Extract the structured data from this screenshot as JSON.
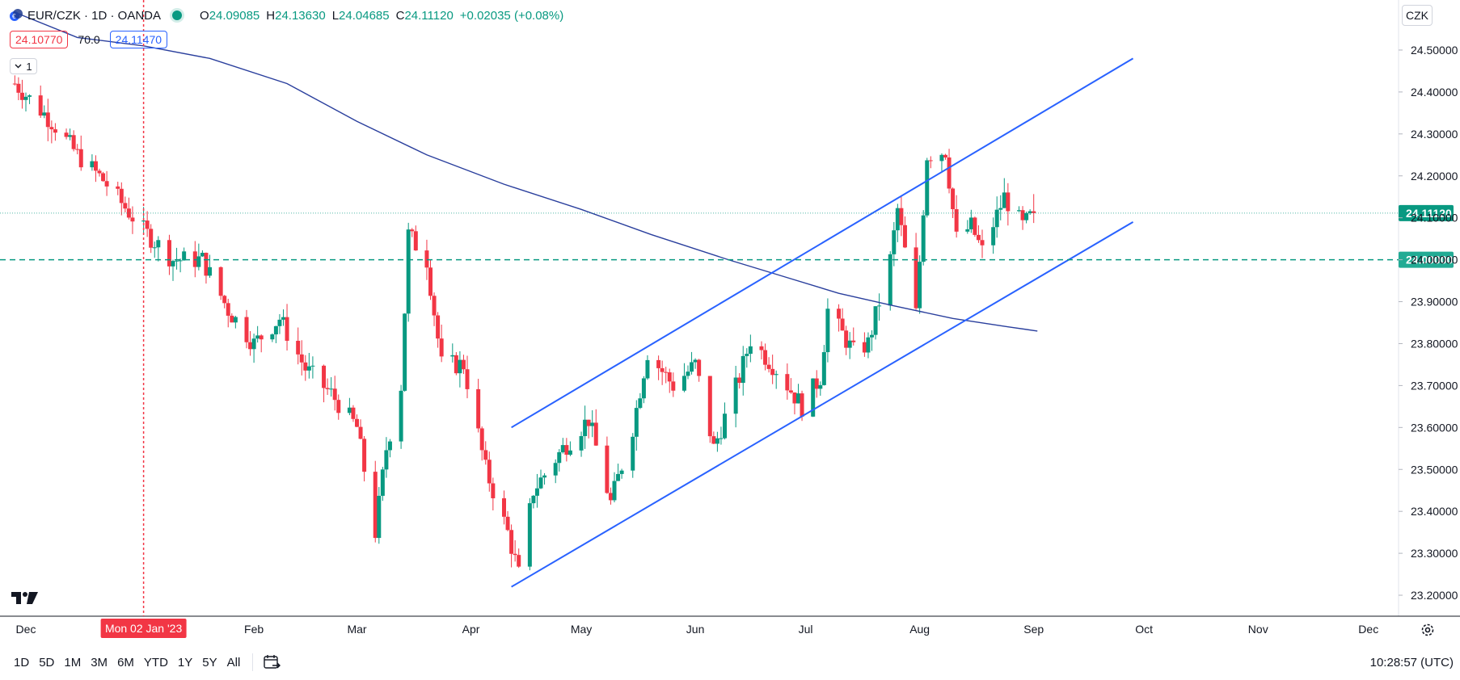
{
  "header": {
    "title": "EUR/CZK · 1D · OANDA",
    "open_label": "O",
    "open": "24.09085",
    "high_label": "H",
    "high": "24.13630",
    "low_label": "L",
    "low": "24.04685",
    "close_label": "C",
    "close": "24.11120",
    "change": "+0.02035 (+0.08%)"
  },
  "indicator": {
    "bid": "24.10770",
    "spread": "70.0",
    "ask": "24.11470",
    "collapse_count": "1"
  },
  "currency_button": "CZK",
  "bottom_bar": {
    "timeframes": [
      "1D",
      "5D",
      "1M",
      "3M",
      "6M",
      "YTD",
      "1Y",
      "5Y",
      "All"
    ],
    "clock": "10:28:57 (UTC)"
  },
  "colors": {
    "up": "#089981",
    "down": "#f23645",
    "ma": "#2a3f9d",
    "channel": "#2962ff",
    "level": "#089981",
    "crosshair": "#f23645"
  },
  "chart_data": {
    "type": "candlestick",
    "symbol": "EUR/CZK",
    "interval": "1D",
    "source": "OANDA",
    "ylim": [
      23.15,
      24.55
    ],
    "y_ticks": [
      "24.50000",
      "24.40000",
      "24.30000",
      "24.20000",
      "24.10000",
      "24.00000",
      "23.90000",
      "23.80000",
      "23.70000",
      "23.60000",
      "23.50000",
      "23.40000",
      "23.30000",
      "23.20000"
    ],
    "x_ticks": [
      "Dec",
      "Feb",
      "Mar",
      "Apr",
      "May",
      "Jun",
      "Jul",
      "Aug",
      "Sep",
      "Oct",
      "Nov",
      "Dec"
    ],
    "crosshair_label": "Mon 02 Jan '23",
    "price_label": "24.11120",
    "level_label": "24.00000",
    "last_price": 24.1112,
    "horizontal_level": 24.0,
    "channel_upper": [
      [
        "2023-04-12",
        23.6
      ],
      [
        "2023-09-28",
        24.48
      ]
    ],
    "channel_lower": [
      [
        "2023-04-12",
        23.22
      ],
      [
        "2023-09-28",
        24.09
      ]
    ],
    "moving_average": [
      [
        "2022-11-28",
        24.59
      ],
      [
        "2022-12-15",
        24.53
      ],
      [
        "2023-01-02",
        24.51
      ],
      [
        "2023-01-20",
        24.48
      ],
      [
        "2023-02-10",
        24.42
      ],
      [
        "2023-03-01",
        24.33
      ],
      [
        "2023-03-20",
        24.25
      ],
      [
        "2023-04-10",
        24.18
      ],
      [
        "2023-05-01",
        24.12
      ],
      [
        "2023-05-20",
        24.06
      ],
      [
        "2023-06-10",
        24.0
      ],
      [
        "2023-06-25",
        23.96
      ],
      [
        "2023-07-10",
        23.92
      ],
      [
        "2023-07-25",
        23.89
      ],
      [
        "2023-08-10",
        23.86
      ],
      [
        "2023-08-25",
        23.84
      ],
      [
        "2023-09-02",
        23.83
      ]
    ],
    "series": [
      {
        "name": "EUR/CZK",
        "anchors": [
          [
            "2022-11-28",
            24.42
          ],
          [
            "2022-12-08",
            24.33
          ],
          [
            "2022-12-15",
            24.25
          ],
          [
            "2022-12-22",
            24.19
          ],
          [
            "2023-01-02",
            24.07
          ],
          [
            "2023-01-10",
            24.0
          ],
          [
            "2023-01-18",
            24.0
          ],
          [
            "2023-01-25",
            23.88
          ],
          [
            "2023-02-01",
            23.8
          ],
          [
            "2023-02-08",
            23.86
          ],
          [
            "2023-02-15",
            23.74
          ],
          [
            "2023-02-22",
            23.68
          ],
          [
            "2023-03-01",
            23.6
          ],
          [
            "2023-03-06",
            23.35
          ],
          [
            "2023-03-09",
            23.55
          ],
          [
            "2023-03-13",
            23.7
          ],
          [
            "2023-03-15",
            24.06
          ],
          [
            "2023-03-20",
            24.0
          ],
          [
            "2023-03-24",
            23.75
          ],
          [
            "2023-03-30",
            23.75
          ],
          [
            "2023-04-05",
            23.5
          ],
          [
            "2023-04-11",
            23.35
          ],
          [
            "2023-04-14",
            23.25
          ],
          [
            "2023-04-18",
            23.45
          ],
          [
            "2023-04-26",
            23.55
          ],
          [
            "2023-05-03",
            23.62
          ],
          [
            "2023-05-09",
            23.42
          ],
          [
            "2023-05-15",
            23.6
          ],
          [
            "2023-05-19",
            23.78
          ],
          [
            "2023-05-26",
            23.7
          ],
          [
            "2023-06-01",
            23.75
          ],
          [
            "2023-06-06",
            23.55
          ],
          [
            "2023-06-13",
            23.72
          ],
          [
            "2023-06-16",
            23.81
          ],
          [
            "2023-06-23",
            23.74
          ],
          [
            "2023-06-30",
            23.65
          ],
          [
            "2023-07-05",
            23.72
          ],
          [
            "2023-07-07",
            23.88
          ],
          [
            "2023-07-14",
            23.78
          ],
          [
            "2023-07-18",
            23.8
          ],
          [
            "2023-07-24",
            24.0
          ],
          [
            "2023-07-26",
            24.12
          ],
          [
            "2023-07-31",
            23.87
          ],
          [
            "2023-08-03",
            24.25
          ],
          [
            "2023-08-08",
            24.26
          ],
          [
            "2023-08-11",
            24.05
          ],
          [
            "2023-08-15",
            24.08
          ],
          [
            "2023-08-18",
            24.02
          ],
          [
            "2023-08-24",
            24.15
          ],
          [
            "2023-08-29",
            24.08
          ],
          [
            "2023-09-01",
            24.111
          ]
        ]
      }
    ]
  }
}
